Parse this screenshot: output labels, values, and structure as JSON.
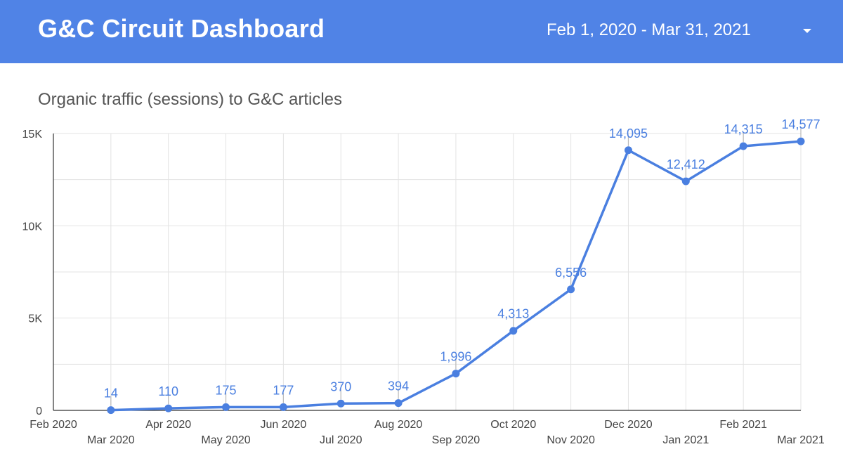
{
  "header": {
    "app_title": "G&C Circuit Dashboard",
    "date_range": "Feb 1, 2020 - Mar 31, 2021",
    "background_color": "#5083e6"
  },
  "chart_data": {
    "type": "line",
    "title": "Organic traffic (sessions) to G&C articles",
    "xlabel": "",
    "ylabel": "",
    "x_ticks": [
      "Feb 2020",
      "Mar 2020",
      "Apr 2020",
      "May 2020",
      "Jun 2020",
      "Jul 2020",
      "Aug 2020",
      "Sep 2020",
      "Oct 2020",
      "Nov 2020",
      "Dec 2020",
      "Jan 2021",
      "Feb 2021",
      "Mar 2021"
    ],
    "y_ticks": [
      "0",
      "5K",
      "10K",
      "15K"
    ],
    "y_tick_values": [
      0,
      5000,
      10000,
      15000
    ],
    "ylim": [
      0,
      15000
    ],
    "grid": true,
    "series": [
      {
        "color": "#4a7fe0",
        "points": [
          {
            "x": "Mar 2020",
            "y": 14,
            "label": "14"
          },
          {
            "x": "Apr 2020",
            "y": 110,
            "label": "110"
          },
          {
            "x": "May 2020",
            "y": 175,
            "label": "175"
          },
          {
            "x": "Jun 2020",
            "y": 177,
            "label": "177"
          },
          {
            "x": "Jul 2020",
            "y": 370,
            "label": "370"
          },
          {
            "x": "Aug 2020",
            "y": 394,
            "label": "394"
          },
          {
            "x": "Sep 2020",
            "y": 1996,
            "label": "1,996"
          },
          {
            "x": "Oct 2020",
            "y": 4313,
            "label": "4,313"
          },
          {
            "x": "Nov 2020",
            "y": 6556,
            "label": "6,556"
          },
          {
            "x": "Dec 2020",
            "y": 14095,
            "label": "14,095"
          },
          {
            "x": "Jan 2021",
            "y": 12412,
            "label": "12,412"
          },
          {
            "x": "Feb 2021",
            "y": 14315,
            "label": "14,315"
          },
          {
            "x": "Mar 2021",
            "y": 14577,
            "label": "14,577"
          }
        ]
      }
    ]
  }
}
